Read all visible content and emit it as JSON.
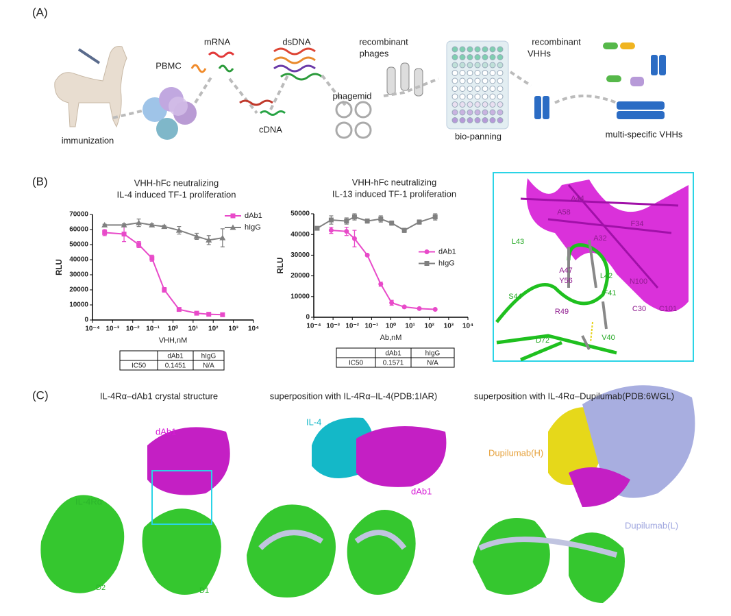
{
  "panel_a": {
    "label": "(A)",
    "immunization": "immunization",
    "pbmc": "PBMC",
    "mrna": "mRNA",
    "cdna": "cDNA",
    "dsdna": "dsDNA",
    "phagemid": "phagemid",
    "phages": [
      "recombinant",
      "phages"
    ],
    "panning": "bio-panning",
    "vhhs": [
      "recombinant",
      "VHHs"
    ],
    "multi": "multi-specific VHHs"
  },
  "panel_b": {
    "label": "(B)",
    "tables": [
      {
        "header": [
          "dAb1",
          "hIgG"
        ],
        "row": [
          "IC50",
          "0.1451",
          "N/A"
        ]
      },
      {
        "header": [
          "dAb1",
          "hIgG"
        ],
        "row": [
          "IC50",
          "0.1571",
          "N/A"
        ]
      }
    ],
    "green_labels": [
      "L43",
      "S44",
      "L42",
      "F41",
      "V40",
      "D72"
    ],
    "purple_labels": [
      "A44",
      "A58",
      "F34",
      "A32",
      "A47",
      "Y56",
      "N100",
      "R49",
      "C30",
      "C101"
    ]
  },
  "chart_data": [
    {
      "type": "line",
      "title": [
        "VHH-hFc neutralizing",
        "IL-4 induced TF-1 proliferation"
      ],
      "xlabel": "VHH,nM",
      "ylabel": "RLU",
      "log_x": true,
      "x": [
        0.0004,
        0.0037,
        0.02,
        0.09,
        0.37,
        2,
        15,
        60,
        290
      ],
      "series": [
        {
          "name": "dAb1",
          "color": "#e84ac9",
          "marker": "square",
          "values": [
            58000,
            57000,
            50000,
            41000,
            20000,
            7000,
            4500,
            3800,
            3500
          ],
          "errors": [
            2000,
            5000,
            2000,
            2000,
            1500,
            1000,
            800,
            600,
            500
          ]
        },
        {
          "name": "hIgG",
          "color": "#808080",
          "marker": "triangle",
          "values": [
            63000,
            63000,
            64500,
            63000,
            62000,
            59500,
            55500,
            53000,
            54500
          ],
          "errors": [
            500,
            800,
            2500,
            800,
            800,
            2500,
            2000,
            3000,
            6000
          ]
        }
      ],
      "xlim": [
        0.0001,
        10000
      ],
      "xticks": [
        {
          "value": 0.0001,
          "label": "10⁻⁴"
        },
        {
          "value": 0.001,
          "label": "10⁻³"
        },
        {
          "value": 0.01,
          "label": "10⁻²"
        },
        {
          "value": 0.1,
          "label": "10⁻¹"
        },
        {
          "value": 1,
          "label": "10⁰"
        },
        {
          "value": 10,
          "label": "10¹"
        },
        {
          "value": 100,
          "label": "10²"
        },
        {
          "value": 1000,
          "label": "10³"
        },
        {
          "value": 10000,
          "label": "10⁴"
        }
      ],
      "ylim": [
        0,
        70000
      ],
      "yticks": [
        0,
        10000,
        20000,
        30000,
        40000,
        50000,
        60000,
        70000
      ],
      "legend": "upper right"
    },
    {
      "type": "line",
      "title": [
        "VHH-hFc neutralizing",
        "IL-13 induced TF-1 proliferation"
      ],
      "xlabel": "Ab,nM",
      "ylabel": "RLU",
      "log_x": true,
      "x": [
        0.00015,
        0.0008,
        0.005,
        0.013,
        0.06,
        0.3,
        1.1,
        5,
        30,
        200
      ],
      "series": [
        {
          "name": "dAb1",
          "color": "#e84ac9",
          "marker": "circle",
          "values": [
            null,
            42000,
            41500,
            38000,
            30000,
            16000,
            7000,
            5000,
            4200,
            3800
          ],
          "errors": [
            null,
            1500,
            2000,
            4000,
            500,
            1000,
            1200,
            600,
            400,
            300
          ]
        },
        {
          "name": "hIgG",
          "color": "#808080",
          "marker": "square",
          "values": [
            43000,
            47000,
            46500,
            48500,
            46500,
            47500,
            45500,
            42000,
            46000,
            48500
          ],
          "errors": [
            500,
            2000,
            1500,
            1500,
            1000,
            1500,
            1000,
            1000,
            1000,
            1500
          ]
        }
      ],
      "xlim": [
        0.0001,
        10000
      ],
      "xticks": [
        {
          "value": 0.0001,
          "label": "10⁻⁴"
        },
        {
          "value": 0.001,
          "label": "10⁻³"
        },
        {
          "value": 0.01,
          "label": "10⁻²"
        },
        {
          "value": 0.1,
          "label": "10⁻¹"
        },
        {
          "value": 1,
          "label": "10⁰"
        },
        {
          "value": 10,
          "label": "10¹"
        },
        {
          "value": 100,
          "label": "10²"
        },
        {
          "value": 1000,
          "label": "10³"
        },
        {
          "value": 10000,
          "label": "10⁴"
        }
      ],
      "ylim": [
        0,
        50000
      ],
      "yticks": [
        0,
        10000,
        20000,
        30000,
        40000,
        50000
      ],
      "legend": "center right"
    }
  ],
  "panel_c": {
    "label": "(C)",
    "titles": [
      "IL-4Rα–dAb1 crystal structure",
      "superposition with IL-4Rα–IL-4(PDB:1IAR)",
      "superposition with IL-4Rα–Dupilumab(PDB:6WGL)"
    ],
    "dab1": "dAb1",
    "receptor": "IL-4Rα",
    "d2": "D2",
    "d1": "D1",
    "il4": "IL-4",
    "dab1_b": "dAb1",
    "dupi_h": "Dupilumab(H)",
    "dupi_l": "Dupilumab(L)"
  }
}
